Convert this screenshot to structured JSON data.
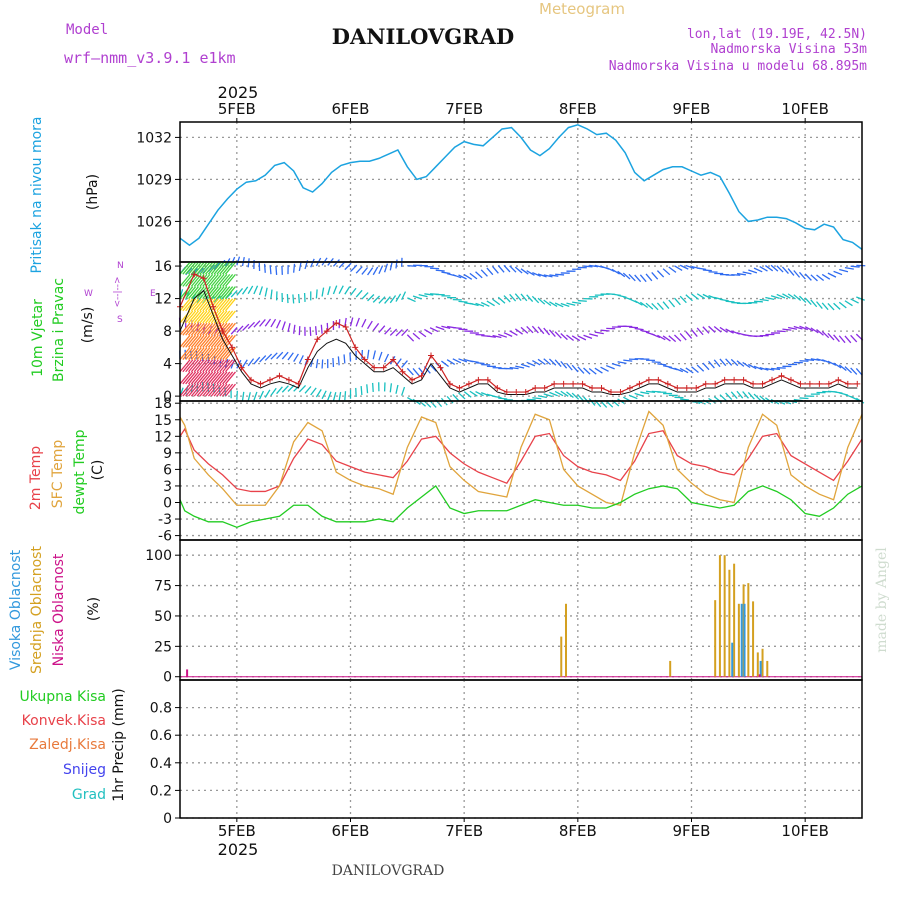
{
  "header": {
    "model_label": "Model",
    "model_name": "wrf—nmm_v3.9.1 e1km",
    "title": "DANILOVGRAD",
    "subtitle": "Meteogram",
    "lonlat": "lon,lat (19.19E, 42.5N)",
    "elevation": "Nadmorska Visina 53m",
    "model_elevation": "Nadmorska Visina u modelu 68.895m",
    "footer_title": "DANILOVGRAD",
    "watermark": "made by Angel",
    "year_top": "2025",
    "year_bottom": "2025"
  },
  "colors": {
    "pressure": "#1ca3e0",
    "temp2m": "#e8424a",
    "sfc_temp": "#e0a43c",
    "dewpt": "#22cc22",
    "high_cloud": "#3399dd",
    "mid_cloud": "#d4a020",
    "low_cloud": "#cc1188",
    "wind_label": "#22cc22",
    "model_text": "#b040d0",
    "gust": "#cc2222"
  },
  "chart_data": {
    "type": "line",
    "x_axis": {
      "domain": [
        0,
        144
      ],
      "unit": "hours from 2025-02-04 12:00",
      "tick_labels": [
        "5FEB",
        "6FEB",
        "7FEB",
        "8FEB",
        "9FEB",
        "10FEB"
      ],
      "tick_hours": [
        12,
        36,
        60,
        84,
        108,
        132
      ]
    },
    "panels": [
      {
        "id": "pressure",
        "title": "Pritisak na nivou mora",
        "ylabel": "(hPa)",
        "ylim": [
          1023.1,
          1033.1
        ],
        "yticks": [
          1026,
          1029,
          1032
        ],
        "series": [
          {
            "x": [
              0,
              2,
              4,
              6,
              8,
              10,
              12,
              14,
              16,
              18,
              20,
              22,
              24,
              26,
              28,
              30,
              32,
              34,
              36,
              38,
              40,
              42,
              44,
              46,
              48,
              50,
              52,
              54,
              56,
              58,
              60,
              62,
              64,
              66,
              68,
              70,
              72,
              74,
              76,
              78,
              80,
              82,
              84,
              86,
              88,
              90,
              92,
              94,
              96,
              98,
              100,
              102,
              104,
              106,
              108,
              110,
              112,
              114,
              116,
              118,
              120,
              122,
              124,
              126,
              128,
              130,
              132,
              134,
              136,
              138,
              140,
              142,
              144
            ],
            "values": [
              1024.8,
              1024.3,
              1024.8,
              1025.8,
              1026.8,
              1027.6,
              1028.3,
              1028.8,
              1028.9,
              1029.3,
              1030.0,
              1030.2,
              1029.6,
              1028.4,
              1028.1,
              1028.7,
              1029.5,
              1030.0,
              1030.2,
              1030.3,
              1030.3,
              1030.5,
              1030.8,
              1031.1,
              1029.9,
              1029.0,
              1029.2,
              1029.9,
              1030.6,
              1031.3,
              1031.7,
              1031.5,
              1031.4,
              1032.0,
              1032.6,
              1032.7,
              1032.0,
              1031.1,
              1030.7,
              1031.2,
              1032.0,
              1032.7,
              1032.9,
              1032.6,
              1032.2,
              1032.3,
              1031.8,
              1030.9,
              1029.5,
              1028.9,
              1029.3,
              1029.7,
              1029.9,
              1029.9,
              1029.6,
              1029.3,
              1029.5,
              1029.2,
              1028.0,
              1026.7,
              1026.0,
              1026.1,
              1026.3,
              1026.3,
              1026.2,
              1025.9,
              1025.5,
              1025.4,
              1025.8,
              1025.6,
              1024.7,
              1024.5,
              1024.0
            ]
          }
        ]
      },
      {
        "id": "wind",
        "title": "10m Vjetar",
        "title2": "Brzina i Pravac",
        "ylabel": "(m/s)",
        "ylim": [
          -0.6,
          16.5
        ],
        "yticks": [
          0,
          4,
          8,
          12,
          16
        ],
        "compass": {
          "w": "W",
          "e": "E",
          "n": "N",
          "s": "S",
          "label": "<--|-->"
        },
        "series": [
          {
            "name": "gust",
            "x": [
              0,
              3,
              5,
              7,
              9,
              11,
              13,
              15,
              17,
              19,
              21,
              23,
              25,
              27,
              29,
              31,
              33,
              35,
              37,
              39,
              41,
              43,
              45,
              47,
              49,
              51,
              53,
              55,
              57,
              59,
              61,
              63,
              65,
              67,
              69,
              71,
              73,
              75,
              77,
              79,
              81,
              83,
              85,
              87,
              89,
              91,
              93,
              95,
              97,
              99,
              101,
              103,
              105,
              107,
              109,
              111,
              113,
              115,
              117,
              119,
              121,
              123,
              125,
              127,
              129,
              131,
              133,
              135,
              137,
              139,
              141,
              143
            ],
            "values": [
              11,
              15,
              14.5,
              11,
              8,
              6,
              3.5,
              2,
              1.5,
              2,
              2.5,
              2,
              1.5,
              4.5,
              7,
              8,
              9,
              8.5,
              6,
              4.5,
              3.5,
              3.5,
              4.5,
              3,
              2,
              2.5,
              5,
              3.5,
              1.5,
              1,
              1.5,
              2,
              2,
              1,
              0.5,
              0.5,
              0.5,
              1,
              1,
              1.5,
              1.5,
              1.5,
              1.5,
              1,
              1,
              0.5,
              0.5,
              1,
              1.5,
              2,
              2,
              1.5,
              1,
              1,
              1,
              1.5,
              1.5,
              2,
              2,
              2,
              1.5,
              1.5,
              2,
              2.5,
              2,
              1.5,
              1.5,
              1.5,
              1.5,
              2,
              1.5,
              1.5
            ]
          },
          {
            "name": "speed",
            "x": [
              0,
              3,
              5,
              7,
              9,
              11,
              13,
              15,
              17,
              19,
              21,
              23,
              25,
              27,
              29,
              31,
              33,
              35,
              37,
              39,
              41,
              43,
              45,
              47,
              49,
              51,
              53,
              55,
              57,
              59,
              61,
              63,
              65,
              67,
              69,
              71,
              73,
              75,
              77,
              79,
              81,
              83,
              85,
              87,
              89,
              91,
              93,
              95,
              97,
              99,
              101,
              103,
              105,
              107,
              109,
              111,
              113,
              115,
              117,
              119,
              121,
              123,
              125,
              127,
              129,
              131,
              133,
              135,
              137,
              139,
              141,
              143
            ],
            "values": [
              8,
              12,
              13,
              10,
              7,
              5,
              3,
              1.5,
              1,
              1.5,
              1.8,
              1.5,
              1,
              3.5,
              5.5,
              6.5,
              7,
              6.5,
              5,
              4,
              3,
              3,
              3.5,
              2.5,
              1.5,
              2,
              4,
              2.5,
              1,
              0.5,
              1,
              1.5,
              1.5,
              0.5,
              0.2,
              0.2,
              0.2,
              0.5,
              0.5,
              1,
              1,
              1,
              1,
              0.5,
              0.5,
              0.2,
              0.2,
              0.5,
              1,
              1.5,
              1.5,
              1,
              0.5,
              0.5,
              0.5,
              1,
              1,
              1.5,
              1.5,
              1.5,
              1,
              1,
              1.5,
              2,
              1.5,
              1,
              1,
              1,
              1,
              1.5,
              1,
              1
            ]
          }
        ]
      },
      {
        "id": "temperature",
        "title": "2m Temp",
        "title2": "SFC Temp",
        "title3": "dewpt Temp",
        "ylabel": "(C)",
        "ylim": [
          -6.8,
          18.4
        ],
        "yticks": [
          -6,
          -3,
          0,
          3,
          6,
          9,
          12,
          15,
          18
        ],
        "series": [
          {
            "name": "2m Temp",
            "x": [
              0,
              1,
              3,
              6,
              9,
              12,
              15,
              18,
              21,
              24,
              27,
              30,
              33,
              36,
              39,
              42,
              45,
              48,
              51,
              54,
              57,
              60,
              63,
              66,
              69,
              72,
              75,
              78,
              81,
              84,
              87,
              90,
              93,
              96,
              99,
              102,
              105,
              108,
              111,
              114,
              117,
              120,
              123,
              126,
              129,
              132,
              135,
              138,
              141,
              144
            ],
            "values": [
              12,
              13.3,
              9.5,
              7,
              5,
              2.5,
              2,
              2,
              3,
              8,
              11.5,
              10.5,
              7.5,
              6.5,
              5.5,
              5,
              4.5,
              7.5,
              11.5,
              12,
              9,
              7,
              5.5,
              4.5,
              3.5,
              7.5,
              12,
              12.5,
              8.5,
              6.5,
              5.5,
              5,
              4,
              7.5,
              12.5,
              13,
              8.5,
              7,
              6.5,
              5.5,
              5,
              8,
              12,
              12.5,
              8.5,
              7,
              5.5,
              4,
              7.5,
              11.5
            ]
          },
          {
            "name": "SFC Temp",
            "x": [
              0,
              1,
              3,
              6,
              9,
              12,
              15,
              18,
              21,
              24,
              27,
              30,
              33,
              36,
              39,
              42,
              45,
              48,
              51,
              54,
              57,
              60,
              63,
              66,
              69,
              72,
              75,
              78,
              81,
              84,
              87,
              90,
              93,
              96,
              99,
              102,
              105,
              108,
              111,
              114,
              117,
              120,
              123,
              126,
              129,
              132,
              135,
              138,
              141,
              144
            ],
            "values": [
              15.5,
              14,
              8,
              5,
              2.5,
              -0.5,
              -0.5,
              -0.5,
              3,
              11,
              14.5,
              13,
              5.5,
              4,
              3,
              2.5,
              1.5,
              10,
              15.5,
              14.5,
              6.5,
              4,
              2,
              1.5,
              1,
              10,
              16,
              15,
              6,
              3,
              1.5,
              0,
              -0.5,
              9,
              16.5,
              14,
              6,
              3.5,
              1.5,
              0.5,
              0,
              10,
              16,
              14,
              5,
              3,
              1.5,
              0.5,
              10,
              16
            ]
          },
          {
            "name": "dewpt Temp",
            "x": [
              0,
              1,
              3,
              6,
              9,
              12,
              15,
              18,
              21,
              24,
              27,
              30,
              33,
              36,
              39,
              42,
              45,
              48,
              51,
              54,
              57,
              60,
              63,
              66,
              69,
              72,
              75,
              78,
              81,
              84,
              87,
              90,
              93,
              96,
              99,
              102,
              105,
              108,
              111,
              114,
              117,
              120,
              123,
              126,
              129,
              132,
              135,
              138,
              141,
              144
            ],
            "values": [
              0.5,
              -1.5,
              -2.5,
              -3.5,
              -3.5,
              -4.5,
              -3.5,
              -3,
              -2.5,
              -0.5,
              -0.5,
              -2.5,
              -3.5,
              -3.5,
              -3.5,
              -3,
              -3.5,
              -1,
              1,
              3,
              -1,
              -2,
              -1.5,
              -1.5,
              -1.5,
              -0.5,
              0.5,
              0,
              -0.5,
              -0.5,
              -1,
              -1,
              0,
              1.5,
              2.5,
              3,
              2.5,
              0,
              -0.5,
              -1,
              -0.5,
              2,
              3,
              2,
              0.5,
              -2,
              -2.5,
              -1,
              1.5,
              3
            ]
          }
        ]
      },
      {
        "id": "cloud",
        "title": "Visoka Oblacnost",
        "title2": "Srednja Oblacnost",
        "title3": "Niska Oblacnost",
        "ylabel": "(%)",
        "ylim": [
          -2.7,
          112.5
        ],
        "yticks": [
          0,
          25,
          50,
          75,
          100
        ],
        "series": [
          {
            "name": "Srednja Oblacnost",
            "x": [
              80.5,
              81.5,
              103.5,
              113,
              114,
              115,
              116,
              117,
              118,
              119,
              120,
              121,
              122,
              123,
              124
            ],
            "values": [
              33,
              60,
              13,
              63,
              100,
              100,
              88,
              93,
              60,
              76,
              77,
              62,
              20,
              23,
              13
            ]
          },
          {
            "name": "Visoka Oblacnost",
            "x": [
              116.6,
              118.6,
              119.2,
              122.6
            ],
            "values": [
              28,
              60,
              60,
              13
            ]
          },
          {
            "name": "Niska Oblacnost",
            "x": [
              1.5,
              122.4
            ],
            "values": [
              6,
              2
            ]
          }
        ]
      },
      {
        "id": "precip",
        "title": "Ukupna Kisa",
        "title2": "Konvek.Kisa",
        "title3": "Zaledj.Kisa",
        "title4": "Snijeg",
        "title5": "Grad",
        "ylabel": "1hr Precip (mm)",
        "ylim": [
          0,
          1.0
        ],
        "yticks": [
          0,
          0.2,
          0.4,
          0.6,
          0.8
        ],
        "series": []
      }
    ]
  }
}
